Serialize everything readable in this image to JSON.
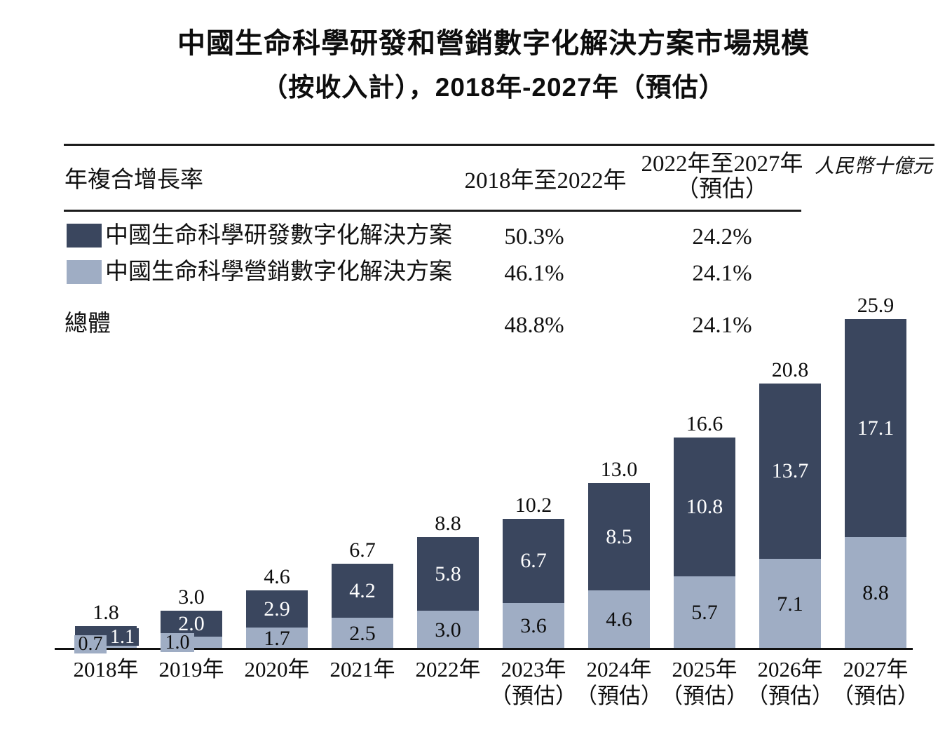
{
  "title": {
    "line1": "中國生命科學研發和營銷數字化解決方案市場規模",
    "line2": "（按收入計），2018年-2027年（預估）"
  },
  "unit_note": "人民幣十億元",
  "colors": {
    "dark_series": "#3a465e",
    "light_series": "#9fadc4",
    "text": "#111111",
    "rule": "#1c1c1c"
  },
  "cagr_table": {
    "row_header": "年複合增長率",
    "col_2018_2022_header": "2018年至2022年",
    "col_2022_2027_header_line1": "2022年至2027年",
    "col_2022_2027_header_line2": "（預估）",
    "rows": [
      {
        "label": "中國生命科學研發數字化解決方案",
        "cagr_2018_2022": "50.3%",
        "cagr_2022_2027": "24.2%"
      },
      {
        "label": "中國生命科學營銷數字化解決方案",
        "cagr_2018_2022": "46.1%",
        "cagr_2022_2027": "24.1%"
      },
      {
        "label": "總體",
        "cagr_2018_2022": "48.8%",
        "cagr_2022_2027": "24.1%"
      }
    ]
  },
  "chart_data": {
    "type": "bar",
    "stacked": true,
    "title": "中國生命科學研發和營銷數字化解決方案市場規模（按收入計），2018年-2027年（預估）",
    "ylabel": "人民幣十億元",
    "ylim": [
      0,
      27
    ],
    "grid": false,
    "legend_position": "top-left-table",
    "categories": [
      {
        "label": "2018年",
        "sublabel": ""
      },
      {
        "label": "2019年",
        "sublabel": ""
      },
      {
        "label": "2020年",
        "sublabel": ""
      },
      {
        "label": "2021年",
        "sublabel": ""
      },
      {
        "label": "2022年",
        "sublabel": ""
      },
      {
        "label": "2023年",
        "sublabel": "（預估）"
      },
      {
        "label": "2024年",
        "sublabel": "（預估）"
      },
      {
        "label": "2025年",
        "sublabel": "（預估）"
      },
      {
        "label": "2026年",
        "sublabel": "（預估）"
      },
      {
        "label": "2027年",
        "sublabel": "（預估）"
      }
    ],
    "series": [
      {
        "name": "中國生命科學營銷數字化解決方案",
        "color": "#9fadc4",
        "values": [
          0.7,
          1.0,
          1.7,
          2.5,
          3.0,
          3.6,
          4.6,
          5.7,
          7.1,
          8.8
        ]
      },
      {
        "name": "中國生命科學研發數字化解決方案",
        "color": "#3a465e",
        "values": [
          1.1,
          2.0,
          2.9,
          4.2,
          5.8,
          6.7,
          8.5,
          10.8,
          13.7,
          17.1
        ]
      }
    ],
    "totals": [
      1.8,
      3.0,
      4.6,
      6.7,
      8.8,
      10.2,
      13.0,
      16.6,
      20.8,
      25.9
    ]
  }
}
